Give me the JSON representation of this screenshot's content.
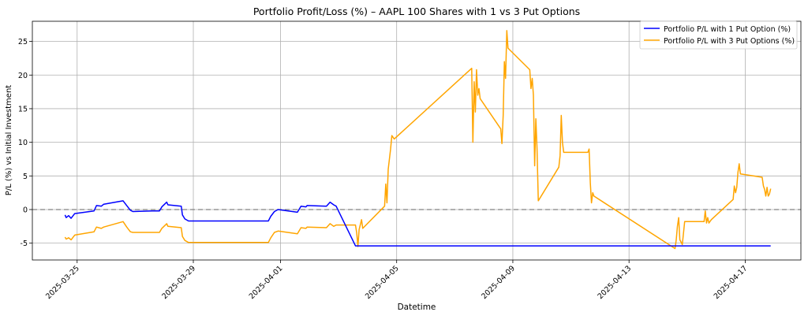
{
  "chart_data": {
    "type": "line",
    "title": "Portfolio Profit/Loss (%) – AAPL 100 Shares with 1 vs 3 Put Options",
    "xlabel": "Datetime",
    "ylabel": "P/L (%) vs Initial Investment",
    "xlim": [
      "2025-03-23T11:00",
      "2025-04-18T22:00"
    ],
    "ylim": [
      -7.5,
      28
    ],
    "xticks": [
      "2025-03-25",
      "2025-03-29",
      "2025-04-01",
      "2025-04-05",
      "2025-04-09",
      "2025-04-13",
      "2025-04-17"
    ],
    "yticks": [
      -5,
      0,
      5,
      10,
      15,
      20,
      25
    ],
    "grid": true,
    "legend_position": "top-right",
    "reference_line": {
      "y": 0,
      "style": "dashed",
      "color": "#808080"
    },
    "series": [
      {
        "name": "Portfolio P/L with 1 Put Option (%)",
        "color": "#0000ff",
        "points": [
          [
            "2025-03-24T14:00",
            -0.8
          ],
          [
            "2025-03-24T15:00",
            -1.2
          ],
          [
            "2025-03-24T17:00",
            -0.9
          ],
          [
            "2025-03-24T19:00",
            -1.3
          ],
          [
            "2025-03-24T22:00",
            -0.6
          ],
          [
            "2025-03-25T14:00",
            -0.2
          ],
          [
            "2025-03-25T16:00",
            0.6
          ],
          [
            "2025-03-25T20:00",
            0.5
          ],
          [
            "2025-03-25T22:00",
            0.8
          ],
          [
            "2025-03-26T14:00",
            1.3
          ],
          [
            "2025-03-26T17:00",
            0.6
          ],
          [
            "2025-03-26T20:00",
            -0.1
          ],
          [
            "2025-03-26T22:00",
            -0.3
          ],
          [
            "2025-03-27T14:00",
            -0.2
          ],
          [
            "2025-03-27T20:00",
            -0.2
          ],
          [
            "2025-03-27T22:00",
            0.4
          ],
          [
            "2025-03-28T02:00",
            1.1
          ],
          [
            "2025-03-28T03:00",
            0.7
          ],
          [
            "2025-03-28T14:00",
            0.5
          ],
          [
            "2025-03-28T15:00",
            -0.8
          ],
          [
            "2025-03-28T17:00",
            -1.4
          ],
          [
            "2025-03-28T20:00",
            -1.7
          ],
          [
            "2025-03-31T14:00",
            -1.7
          ],
          [
            "2025-03-31T16:00",
            -1.0
          ],
          [
            "2025-03-31T19:00",
            -0.3
          ],
          [
            "2025-03-31T22:00",
            0.0
          ],
          [
            "2025-04-01T14:00",
            -0.4
          ],
          [
            "2025-04-01T17:00",
            0.5
          ],
          [
            "2025-04-01T21:00",
            0.4
          ],
          [
            "2025-04-01T22:00",
            0.6
          ],
          [
            "2025-04-02T14:00",
            0.5
          ],
          [
            "2025-04-02T17:00",
            1.1
          ],
          [
            "2025-04-02T20:00",
            0.7
          ],
          [
            "2025-04-02T22:00",
            0.5
          ],
          [
            "2025-04-03T14:00",
            -5.4
          ],
          [
            "2025-04-17T21:00",
            -5.4
          ]
        ]
      },
      {
        "name": "Portfolio P/L with 3 Put Options (%)",
        "color": "#ffa500",
        "points": [
          [
            "2025-03-24T14:00",
            -4.1
          ],
          [
            "2025-03-24T15:00",
            -4.4
          ],
          [
            "2025-03-24T17:00",
            -4.2
          ],
          [
            "2025-03-24T19:00",
            -4.5
          ],
          [
            "2025-03-24T22:00",
            -3.8
          ],
          [
            "2025-03-25T14:00",
            -3.3
          ],
          [
            "2025-03-25T16:00",
            -2.6
          ],
          [
            "2025-03-25T20:00",
            -2.8
          ],
          [
            "2025-03-25T22:00",
            -2.6
          ],
          [
            "2025-03-26T14:00",
            -1.8
          ],
          [
            "2025-03-26T17:00",
            -2.6
          ],
          [
            "2025-03-26T20:00",
            -3.3
          ],
          [
            "2025-03-26T22:00",
            -3.4
          ],
          [
            "2025-03-27T14:00",
            -3.4
          ],
          [
            "2025-03-27T20:00",
            -3.4
          ],
          [
            "2025-03-27T22:00",
            -2.8
          ],
          [
            "2025-03-28T02:00",
            -2.1
          ],
          [
            "2025-03-28T03:00",
            -2.5
          ],
          [
            "2025-03-28T14:00",
            -2.7
          ],
          [
            "2025-03-28T15:00",
            -4.0
          ],
          [
            "2025-03-28T17:00",
            -4.6
          ],
          [
            "2025-03-28T20:00",
            -4.9
          ],
          [
            "2025-03-31T14:00",
            -4.9
          ],
          [
            "2025-03-31T16:00",
            -4.2
          ],
          [
            "2025-03-31T19:00",
            -3.4
          ],
          [
            "2025-03-31T22:00",
            -3.2
          ],
          [
            "2025-04-01T14:00",
            -3.6
          ],
          [
            "2025-04-01T17:00",
            -2.7
          ],
          [
            "2025-04-01T21:00",
            -2.8
          ],
          [
            "2025-04-01T22:00",
            -2.6
          ],
          [
            "2025-04-02T14:00",
            -2.7
          ],
          [
            "2025-04-02T17:00",
            -2.1
          ],
          [
            "2025-04-02T20:00",
            -2.5
          ],
          [
            "2025-04-02T22:00",
            -2.3
          ],
          [
            "2025-04-03T14:00",
            -2.3
          ],
          [
            "2025-04-03T15:00",
            -3.5
          ],
          [
            "2025-04-03T16:00",
            -5.5
          ],
          [
            "2025-04-03T17:00",
            -3.0
          ],
          [
            "2025-04-03T19:00",
            -1.5
          ],
          [
            "2025-04-03T20:00",
            -2.8
          ],
          [
            "2025-04-04T14:00",
            0.5
          ],
          [
            "2025-04-04T15:00",
            3.8
          ],
          [
            "2025-04-04T16:00",
            1.0
          ],
          [
            "2025-04-04T17:00",
            6.0
          ],
          [
            "2025-04-04T19:00",
            9.0
          ],
          [
            "2025-04-04T20:00",
            11.0
          ],
          [
            "2025-04-04T22:00",
            10.5
          ],
          [
            "2025-04-07T14:00",
            21.0
          ],
          [
            "2025-04-07T15:00",
            10.0
          ],
          [
            "2025-04-07T16:00",
            19.0
          ],
          [
            "2025-04-07T17:00",
            14.5
          ],
          [
            "2025-04-07T18:00",
            20.8
          ],
          [
            "2025-04-07T19:00",
            17.0
          ],
          [
            "2025-04-07T20:00",
            18.0
          ],
          [
            "2025-04-07T21:00",
            16.5
          ],
          [
            "2025-04-08T14:00",
            12.0
          ],
          [
            "2025-04-08T15:00",
            9.8
          ],
          [
            "2025-04-08T16:00",
            14.0
          ],
          [
            "2025-04-08T17:00",
            22.0
          ],
          [
            "2025-04-08T18:00",
            19.5
          ],
          [
            "2025-04-08T19:00",
            26.6
          ],
          [
            "2025-04-08T20:00",
            24.0
          ],
          [
            "2025-04-09T14:00",
            20.8
          ],
          [
            "2025-04-09T15:00",
            18.0
          ],
          [
            "2025-04-09T16:00",
            19.5
          ],
          [
            "2025-04-09T17:00",
            17.0
          ],
          [
            "2025-04-09T18:00",
            6.5
          ],
          [
            "2025-04-09T19:00",
            13.5
          ],
          [
            "2025-04-09T20:00",
            9.0
          ],
          [
            "2025-04-09T21:00",
            1.3
          ],
          [
            "2025-04-10T14:00",
            6.3
          ],
          [
            "2025-04-10T15:00",
            8.0
          ],
          [
            "2025-04-10T16:00",
            14.0
          ],
          [
            "2025-04-10T17:00",
            10.0
          ],
          [
            "2025-04-10T18:00",
            8.5
          ],
          [
            "2025-04-11T14:00",
            8.5
          ],
          [
            "2025-04-11T15:00",
            9.0
          ],
          [
            "2025-04-11T16:00",
            4.0
          ],
          [
            "2025-04-11T17:00",
            1.0
          ],
          [
            "2025-04-11T18:00",
            2.5
          ],
          [
            "2025-04-11T19:00",
            2.0
          ],
          [
            "2025-04-14T14:00",
            -5.8
          ],
          [
            "2025-04-14T15:00",
            -4.5
          ],
          [
            "2025-04-14T16:00",
            -2.5
          ],
          [
            "2025-04-14T17:00",
            -1.2
          ],
          [
            "2025-04-14T18:00",
            -4.5
          ],
          [
            "2025-04-14T20:00",
            -5.2
          ],
          [
            "2025-04-14T22:00",
            -1.8
          ],
          [
            "2025-04-15T14:00",
            -1.8
          ],
          [
            "2025-04-15T15:00",
            -0.2
          ],
          [
            "2025-04-15T16:00",
            -2.0
          ],
          [
            "2025-04-15T17:00",
            -1.2
          ],
          [
            "2025-04-15T18:00",
            -2.0
          ],
          [
            "2025-04-15T20:00",
            -1.5
          ],
          [
            "2025-04-16T14:00",
            1.5
          ],
          [
            "2025-04-16T15:00",
            3.5
          ],
          [
            "2025-04-16T16:00",
            2.5
          ],
          [
            "2025-04-16T17:00",
            3.3
          ],
          [
            "2025-04-16T18:00",
            5.5
          ],
          [
            "2025-04-16T19:00",
            6.8
          ],
          [
            "2025-04-16T20:00",
            5.3
          ],
          [
            "2025-04-17T14:00",
            4.8
          ],
          [
            "2025-04-17T15:00",
            3.5
          ],
          [
            "2025-04-17T16:00",
            3.0
          ],
          [
            "2025-04-17T17:00",
            2.0
          ],
          [
            "2025-04-17T18:00",
            3.3
          ],
          [
            "2025-04-17T19:00",
            2.0
          ],
          [
            "2025-04-17T20:00",
            2.3
          ],
          [
            "2025-04-17T21:00",
            3.1
          ]
        ]
      }
    ]
  }
}
